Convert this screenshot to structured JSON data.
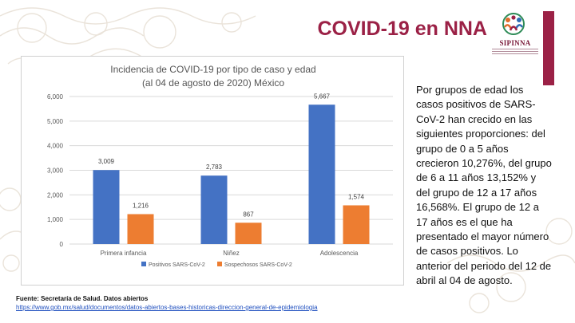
{
  "slide": {
    "title": "COVID-19 en NNA",
    "logo_text": "SIPINNA",
    "side_text": "Por grupos de edad los casos positivos de SARS-CoV-2 han crecido en las siguientes proporciones: del grupo de 0 a 5 años crecieron 10,276%, del grupo de 6 a 11 años 13,152% y del grupo de 12 a 17 años 16,568%. El grupo de 12 a 17 años es el que ha presentado el mayor número de casos positivos. Lo anterior del periodo del 12 de abril al 04 de agosto.",
    "source_label": "Fuente: Secretaría de Salud. Datos abiertos",
    "source_link": "https://www.gob.mx/salud/documentos/datos-abiertos-bases-historicas-direccion-general-de-epidemiologia"
  },
  "colors": {
    "accent": "#9b2146",
    "series_positive": "#4472c4",
    "series_suspect": "#ed7d31"
  },
  "chart_data": {
    "type": "bar",
    "title": "Incidencia de COVID-19 por tipo de caso y edad",
    "subtitle": "(al 04 de agosto de 2020) México",
    "categories": [
      "Primera infancia",
      "Niñez",
      "Adolescencia"
    ],
    "series": [
      {
        "name": "Positivos SARS-CoV-2",
        "values": [
          3009,
          2783,
          5667
        ],
        "labels": [
          "3,009",
          "2,783",
          "5,667"
        ]
      },
      {
        "name": "Sospechosos SARS-CoV-2",
        "values": [
          1216,
          867,
          1574
        ],
        "labels": [
          "1,216",
          "867",
          "1,574"
        ]
      }
    ],
    "ylim": [
      0,
      6000
    ],
    "yticks": [
      "0",
      "1,000",
      "2,000",
      "3,000",
      "4,000",
      "5,000",
      "6,000"
    ],
    "grid": true,
    "legend": "bottom"
  }
}
